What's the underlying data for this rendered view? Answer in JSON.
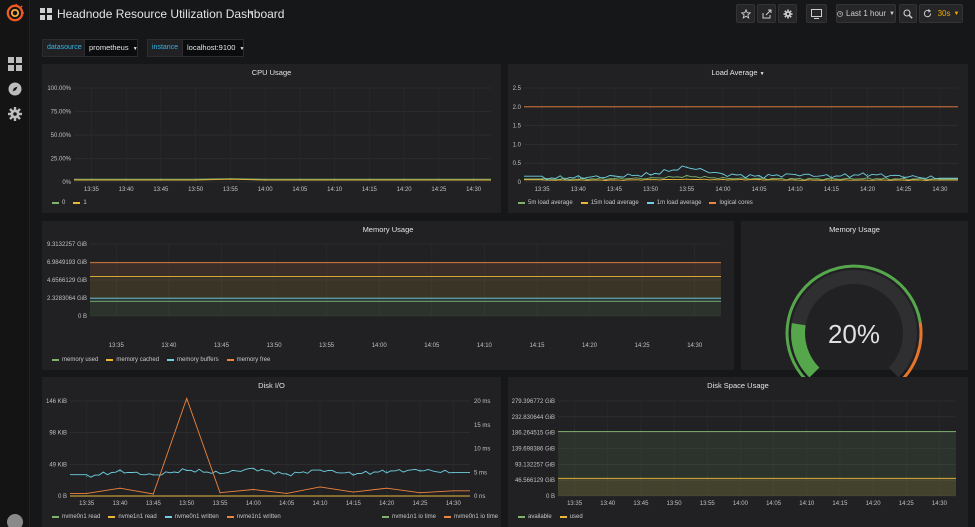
{
  "app": {
    "title": "Headnode Resource Utilization Dashboard",
    "time_range_label": "Last 1 hour",
    "refresh_interval": "30s"
  },
  "colors": {
    "green": "#7eb26d",
    "yellow": "#eab839",
    "light_blue": "#6ed0e0",
    "orange": "#ef843c",
    "gauge_green": "#56a64b",
    "gauge_orange": "#e7752a"
  },
  "variables": [
    {
      "label": "datasource",
      "value": "prometheus"
    },
    {
      "label": "instance",
      "value": "localhost:9100"
    }
  ],
  "toolbar_icons": [
    "star-icon",
    "share-icon",
    "settings-icon",
    "tv-icon",
    "clock-icon",
    "zoom-out-icon",
    "refresh-icon"
  ],
  "sidebar_icons": [
    "grafana-logo",
    "dashboards-grid-icon",
    "explore-compass-icon",
    "gear-icon",
    "user-avatar"
  ],
  "panels": {
    "cpu": {
      "title": "CPU Usage",
      "legend": [
        "0",
        "1"
      ]
    },
    "load": {
      "title": "Load Average",
      "legend": [
        "5m load average",
        "15m load average",
        "1m load average",
        "logical cores"
      ]
    },
    "memory": {
      "title": "Memory Usage",
      "legend": [
        "memory used",
        "memory cached",
        "memory buffers",
        "memory free"
      ]
    },
    "gauge": {
      "title": "Memory Usage",
      "value_text": "20%",
      "value": 20
    },
    "disk_io": {
      "title": "Disk I/O",
      "legend_left": [
        "nvme0n1 read",
        "nvme1n1 read",
        "nvme0n1 written",
        "nvme1n1 written"
      ],
      "legend_right": [
        "nvme1n1 io time",
        "nvme0n1 io time"
      ]
    },
    "disk_space": {
      "title": "Disk Space Usage",
      "legend": [
        "available",
        "used"
      ]
    }
  },
  "chart_data": [
    {
      "type": "line",
      "title": "CPU Usage",
      "x": [
        "13:35",
        "13:40",
        "13:45",
        "13:50",
        "13:55",
        "14:00",
        "14:05",
        "14:10",
        "14:15",
        "14:20",
        "14:25",
        "14:30"
      ],
      "y_ticks": [
        "0%",
        "25.00%",
        "50.00%",
        "75.00%",
        "100.00%"
      ],
      "ylim": [
        0,
        100
      ],
      "series": [
        {
          "name": "0",
          "values": [
            3,
            3,
            3,
            3,
            3.5,
            3,
            3,
            3,
            3,
            3,
            3,
            3
          ]
        },
        {
          "name": "1",
          "values": [
            2,
            2,
            2,
            2,
            3,
            2,
            2,
            2,
            2,
            2,
            2,
            2
          ]
        }
      ]
    },
    {
      "type": "line",
      "title": "Load Average",
      "x": [
        "13:35",
        "13:40",
        "13:45",
        "13:50",
        "13:55",
        "14:00",
        "14:05",
        "14:10",
        "14:15",
        "14:20",
        "14:25",
        "14:30"
      ],
      "y_ticks": [
        "0",
        "0.5",
        "1.0",
        "1.5",
        "2.0",
        "2.5"
      ],
      "ylim": [
        0,
        2.5
      ],
      "series": [
        {
          "name": "5m load average",
          "values": [
            0.08,
            0.08,
            0.09,
            0.1,
            0.15,
            0.1,
            0.09,
            0.08,
            0.08,
            0.09,
            0.08,
            0.08
          ]
        },
        {
          "name": "15m load average",
          "values": [
            0.05,
            0.05,
            0.05,
            0.06,
            0.07,
            0.06,
            0.06,
            0.05,
            0.05,
            0.05,
            0.05,
            0.05
          ]
        },
        {
          "name": "1m load average",
          "values": [
            0.1,
            0.12,
            0.15,
            0.2,
            0.4,
            0.2,
            0.15,
            0.2,
            0.15,
            0.2,
            0.15,
            0.1
          ]
        },
        {
          "name": "logical cores",
          "values": [
            2,
            2,
            2,
            2,
            2,
            2,
            2,
            2,
            2,
            2,
            2,
            2
          ]
        }
      ]
    },
    {
      "type": "area",
      "title": "Memory Usage",
      "x": [
        "13:35",
        "13:40",
        "13:45",
        "13:50",
        "13:55",
        "14:00",
        "14:05",
        "14:10",
        "14:15",
        "14:20",
        "14:25",
        "14:30"
      ],
      "y_ticks": [
        "0 B",
        "2.3283064 GiB",
        "4.6566129 GiB",
        "6.9849193 GiB",
        "9.3132257 GiB"
      ],
      "ylim": [
        0,
        9.3132257
      ],
      "series": [
        {
          "name": "memory used",
          "values": [
            1.9,
            1.9,
            1.9,
            1.9,
            1.9,
            1.9,
            1.9,
            1.9,
            1.9,
            1.9,
            1.9,
            1.9
          ]
        },
        {
          "name": "memory cached",
          "values": [
            2.8,
            2.8,
            2.8,
            2.8,
            2.8,
            2.8,
            2.8,
            2.8,
            2.8,
            2.8,
            2.8,
            2.8
          ]
        },
        {
          "name": "memory buffers",
          "values": [
            0.4,
            0.4,
            0.4,
            0.4,
            0.4,
            0.4,
            0.4,
            0.4,
            0.4,
            0.4,
            0.4,
            0.4
          ]
        },
        {
          "name": "memory free",
          "values": [
            1.8,
            1.8,
            1.8,
            1.8,
            1.8,
            1.8,
            1.8,
            1.8,
            1.8,
            1.8,
            1.8,
            1.8
          ]
        }
      ]
    },
    {
      "type": "line",
      "title": "Disk I/O",
      "x": [
        "13:35",
        "13:40",
        "13:45",
        "13:50",
        "13:55",
        "14:00",
        "14:05",
        "14:10",
        "14:15",
        "14:20",
        "14:25",
        "14:30"
      ],
      "y_ticks_left": [
        "0 B",
        "49 KiB",
        "98 KiB",
        "146 KiB"
      ],
      "y_ticks_right": [
        "0 ns",
        "5 ms",
        "10 ms",
        "15 ms",
        "20 ms"
      ],
      "ylim": [
        0,
        146
      ],
      "series": [
        {
          "name": "nvme0n1 read",
          "values": [
            0,
            0,
            0,
            0,
            0,
            0,
            0,
            0,
            0,
            0,
            0,
            0
          ]
        },
        {
          "name": "nvme1n1 read",
          "values": [
            0,
            0,
            0,
            0,
            0,
            0,
            0,
            0,
            0,
            0,
            0,
            0
          ]
        },
        {
          "name": "nvme0n1 written",
          "values": [
            30,
            38,
            32,
            40,
            35,
            42,
            33,
            40,
            34,
            38,
            40,
            36
          ]
        },
        {
          "name": "nvme1n1 written",
          "values": [
            4,
            12,
            3,
            150,
            5,
            10,
            4,
            14,
            6,
            12,
            5,
            8
          ]
        }
      ]
    },
    {
      "type": "area",
      "title": "Disk Space Usage",
      "x": [
        "13:35",
        "13:40",
        "13:45",
        "13:50",
        "13:55",
        "14:00",
        "14:05",
        "14:10",
        "14:15",
        "14:20",
        "14:25",
        "14:30"
      ],
      "y_ticks": [
        "0 B",
        "46.566129 GiB",
        "93.132257 GiB",
        "139.698386 GiB",
        "186.264515 GiB",
        "232.830644 GiB",
        "279.396772 GiB"
      ],
      "ylim": [
        0,
        279.396772
      ],
      "series": [
        {
          "name": "available",
          "values": [
            190,
            190,
            190,
            190,
            190,
            190,
            190,
            190,
            190,
            190,
            190,
            190
          ]
        },
        {
          "name": "used",
          "values": [
            52,
            52,
            52,
            52,
            52,
            52,
            52,
            52,
            52,
            52,
            52,
            52
          ]
        }
      ]
    }
  ]
}
